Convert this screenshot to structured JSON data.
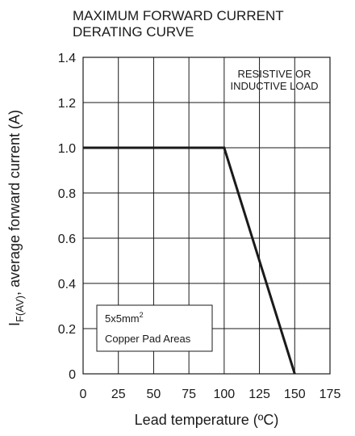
{
  "chart_data": {
    "type": "line",
    "title_lines": [
      "MAXIMUM FORWARD CURRENT",
      "DERATING CURVE"
    ],
    "xlabel": "Lead temperature (ºC)",
    "ylabel": {
      "prefix": "I",
      "subscript": "F(AV)",
      "suffix": ", average forward current (A)"
    },
    "xlim": [
      0,
      175
    ],
    "ylim": [
      0,
      1.4
    ],
    "x_ticks": [
      0,
      25,
      50,
      75,
      100,
      125,
      150,
      175
    ],
    "x_tick_labels": [
      "0",
      "25",
      "50",
      "75",
      "100",
      "125",
      "150",
      "175"
    ],
    "y_ticks": [
      0,
      0.2,
      0.4,
      0.6,
      0.8,
      1.0,
      1.2,
      1.4
    ],
    "y_tick_labels": [
      "0",
      "0.2",
      "0.4",
      "0.6",
      "0.8",
      "1.0",
      "1.2",
      "1.4"
    ],
    "grid": true,
    "series": [
      {
        "x": [
          0,
          100,
          150
        ],
        "y": [
          1.0,
          1.0,
          0
        ]
      }
    ],
    "annotations": {
      "load_note": [
        "RESISTIVE OR",
        "INDUCTIVE LOAD"
      ],
      "pad_note": {
        "size_base": "5x5mm",
        "size_sup": "2",
        "line2": "Copper Pad Areas"
      }
    }
  }
}
